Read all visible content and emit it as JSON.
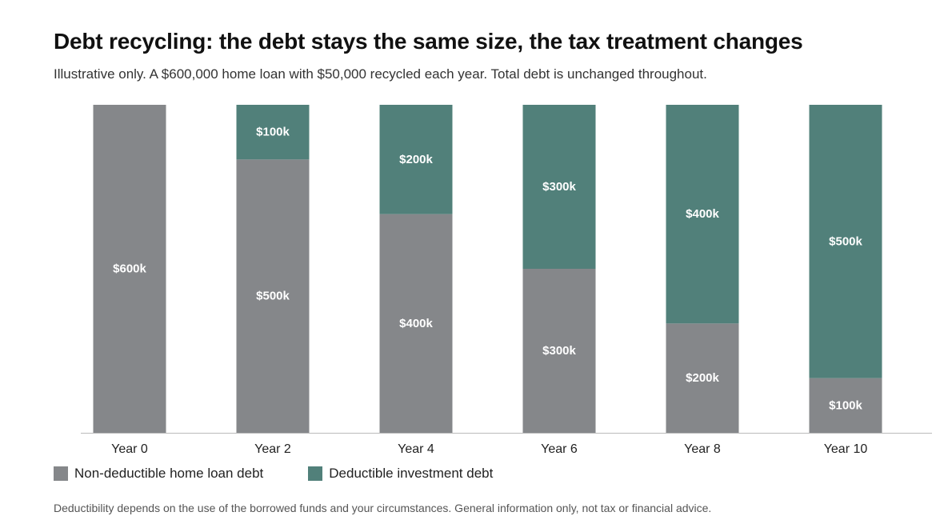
{
  "title": "Debt recycling: the debt stays the same size, the tax treatment changes",
  "subtitle": "Illustrative only. A $600,000 home loan with $50,000 recycled each year. Total debt is unchanged throughout.",
  "footnote": "Deductibility depends on the use of the borrowed funds and your circumstances. General information only, not tax or financial advice.",
  "colors": {
    "non_deductible": "#85878a",
    "deductible": "#51807a",
    "axis": "#bbbbbb"
  },
  "chart_data": {
    "type": "bar",
    "stacked": true,
    "categories": [
      "Year 0",
      "Year 2",
      "Year 4",
      "Year 6",
      "Year 8",
      "Year 10"
    ],
    "series": [
      {
        "name": "Non-deductible home loan debt",
        "values": [
          600000,
          500000,
          400000,
          300000,
          200000,
          100000
        ],
        "labels": [
          "$600k",
          "$500k",
          "$400k",
          "$300k",
          "$200k",
          "$100k"
        ]
      },
      {
        "name": "Deductible investment debt",
        "values": [
          0,
          100000,
          200000,
          300000,
          400000,
          500000
        ],
        "labels": [
          "",
          "$100k",
          "$200k",
          "$300k",
          "$400k",
          "$500k"
        ]
      }
    ],
    "ylim": [
      0,
      600000
    ],
    "grid": false,
    "legend": "bottom-left"
  }
}
